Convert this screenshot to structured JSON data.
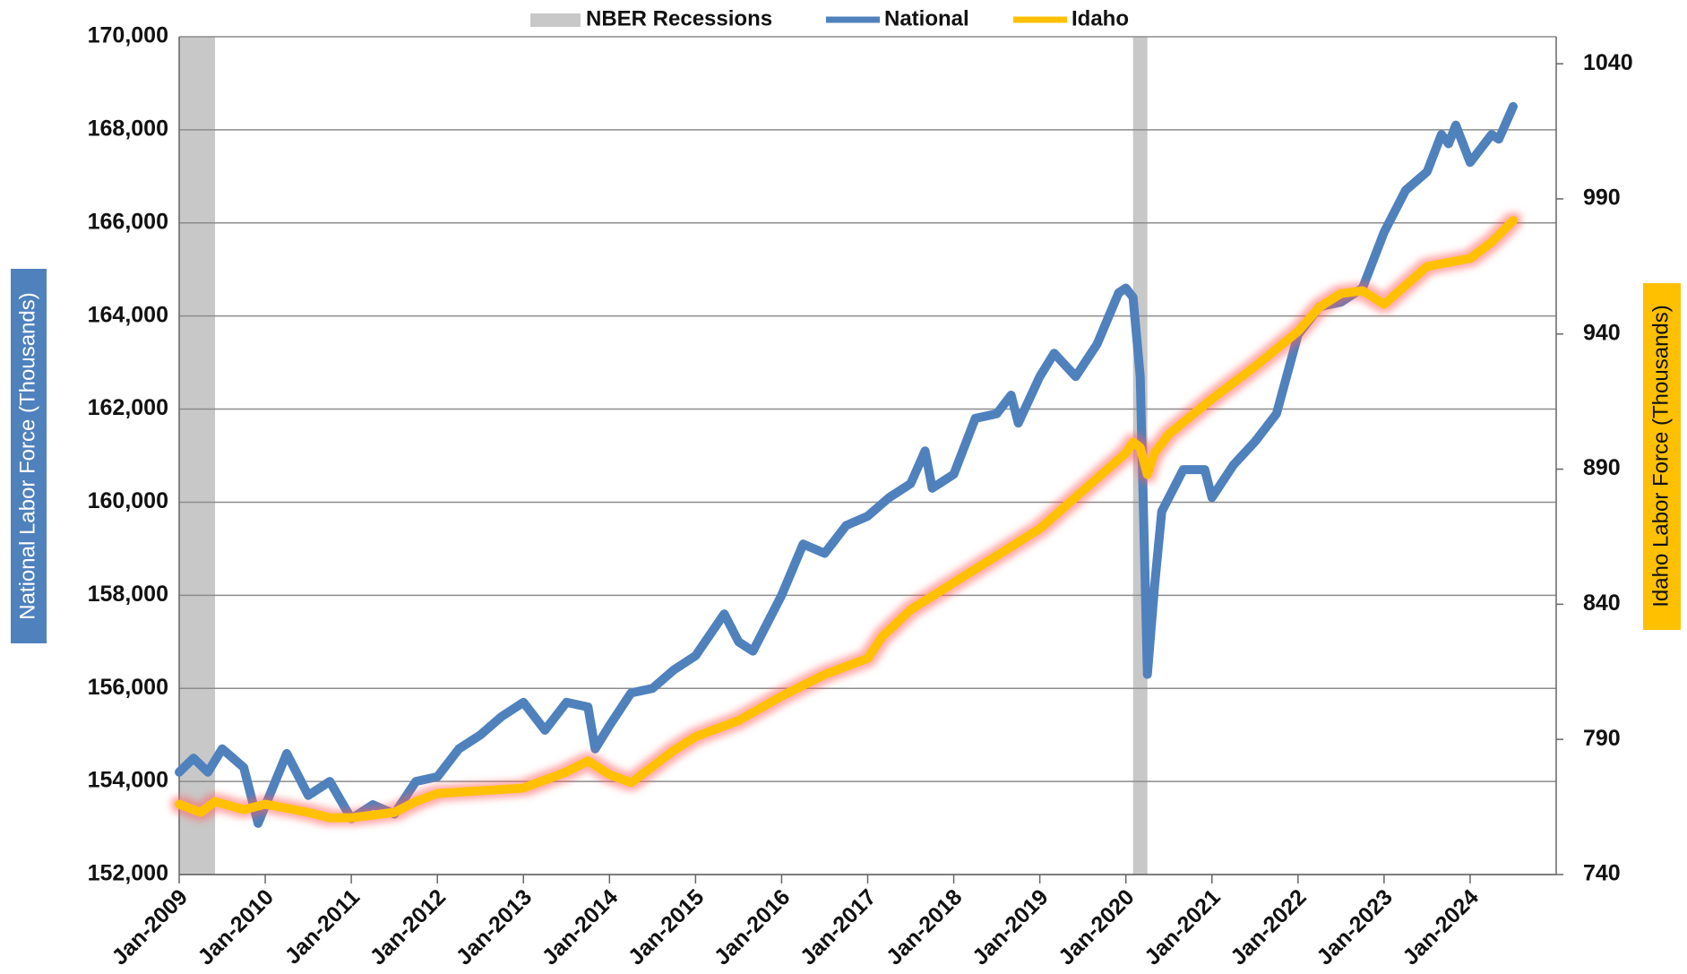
{
  "chart_data": {
    "type": "line",
    "xlim": [
      "2009-01",
      "2025-01"
    ],
    "xticks": [
      {
        "value": "2009-01",
        "label": "Jan-2009"
      },
      {
        "value": "2010-01",
        "label": "Jan-2010"
      },
      {
        "value": "2011-01",
        "label": "Jan-2011"
      },
      {
        "value": "2012-01",
        "label": "Jan-2012"
      },
      {
        "value": "2013-01",
        "label": "Jan-2013"
      },
      {
        "value": "2014-01",
        "label": "Jan-2014"
      },
      {
        "value": "2015-01",
        "label": "Jan-2015"
      },
      {
        "value": "2016-01",
        "label": "Jan-2016"
      },
      {
        "value": "2017-01",
        "label": "Jan-2017"
      },
      {
        "value": "2018-01",
        "label": "Jan-2018"
      },
      {
        "value": "2019-01",
        "label": "Jan-2019"
      },
      {
        "value": "2020-01",
        "label": "Jan-2020"
      },
      {
        "value": "2021-01",
        "label": "Jan-2021"
      },
      {
        "value": "2022-01",
        "label": "Jan-2022"
      },
      {
        "value": "2023-01",
        "label": "Jan-2023"
      },
      {
        "value": "2024-01",
        "label": "Jan-2024"
      }
    ],
    "ylabel": "National Labor Force (Thousands)",
    "ylim": [
      152000,
      170000
    ],
    "yticks": [
      {
        "value": 152000,
        "label": "152,000"
      },
      {
        "value": 154000,
        "label": "154,000"
      },
      {
        "value": 156000,
        "label": "156,000"
      },
      {
        "value": 158000,
        "label": "158,000"
      },
      {
        "value": 160000,
        "label": "160,000"
      },
      {
        "value": 162000,
        "label": "162,000"
      },
      {
        "value": 164000,
        "label": "164,000"
      },
      {
        "value": 166000,
        "label": "166,000"
      },
      {
        "value": 168000,
        "label": "168,000"
      },
      {
        "value": 170000,
        "label": "170,000"
      }
    ],
    "y2label": "Idaho Labor Force (Thousands)",
    "y2lim": [
      740,
      1050
    ],
    "y2ticks": [
      740,
      790,
      840,
      890,
      940,
      990,
      1040
    ],
    "grid": true,
    "legend": "top",
    "recessions": {
      "name": "NBER Recessions",
      "color": "#c8c8c8",
      "periods": [
        {
          "start": "2009-01",
          "end": "2009-06"
        },
        {
          "start": "2020-02",
          "end": "2020-04"
        }
      ]
    },
    "series": [
      {
        "name": "National",
        "color": "#4f81bd",
        "x": [
          "2009-01",
          "2009-03",
          "2009-05",
          "2009-07",
          "2009-10",
          "2009-12",
          "2010-04",
          "2010-07",
          "2010-10",
          "2011-01",
          "2011-04",
          "2011-07",
          "2011-10",
          "2012-01",
          "2012-04",
          "2012-07",
          "2012-10",
          "2013-01",
          "2013-04",
          "2013-07",
          "2013-10",
          "2013-11",
          "2014-01",
          "2014-04",
          "2014-07",
          "2014-10",
          "2015-01",
          "2015-05",
          "2015-07",
          "2015-09",
          "2016-01",
          "2016-04",
          "2016-07",
          "2016-10",
          "2017-01",
          "2017-04",
          "2017-07",
          "2017-09",
          "2017-10",
          "2018-01",
          "2018-04",
          "2018-07",
          "2018-09",
          "2018-10",
          "2019-01",
          "2019-03",
          "2019-06",
          "2019-09",
          "2019-12",
          "2020-01",
          "2020-02",
          "2020-03",
          "2020-04",
          "2020-05",
          "2020-06",
          "2020-09",
          "2020-12",
          "2021-01",
          "2021-04",
          "2021-07",
          "2021-10",
          "2022-01",
          "2022-04",
          "2022-07",
          "2022-10",
          "2023-01",
          "2023-04",
          "2023-07",
          "2023-09",
          "2023-10",
          "2023-11",
          "2024-01",
          "2024-04",
          "2024-05",
          "2024-07"
        ],
        "values": [
          154200,
          154500,
          154200,
          154700,
          154300,
          153100,
          154600,
          153700,
          154000,
          153200,
          153500,
          153300,
          154000,
          154100,
          154700,
          155000,
          155400,
          155700,
          155100,
          155700,
          155600,
          154700,
          155200,
          155900,
          156000,
          156400,
          156700,
          157600,
          157000,
          156800,
          158000,
          159100,
          158900,
          159500,
          159700,
          160100,
          160400,
          161100,
          160300,
          160600,
          161800,
          161900,
          162300,
          161700,
          162700,
          163200,
          162700,
          163400,
          164500,
          164600,
          164400,
          162700,
          156300,
          158200,
          159800,
          160700,
          160700,
          160100,
          160800,
          161300,
          161900,
          163600,
          164200,
          164300,
          164600,
          165800,
          166700,
          167100,
          167900,
          167700,
          168100,
          167300,
          167900,
          167800,
          168500
        ]
      },
      {
        "name": "Idaho",
        "color": "#ffc000",
        "axis": "y2",
        "x": [
          "2009-01",
          "2009-04",
          "2009-06",
          "2009-10",
          "2010-01",
          "2010-07",
          "2010-10",
          "2011-01",
          "2011-07",
          "2011-10",
          "2012-01",
          "2012-07",
          "2013-01",
          "2013-07",
          "2013-10",
          "2014-01",
          "2014-04",
          "2014-07",
          "2014-10",
          "2015-01",
          "2015-07",
          "2016-01",
          "2016-07",
          "2017-01",
          "2017-03",
          "2017-07",
          "2018-01",
          "2018-07",
          "2019-01",
          "2019-07",
          "2020-01",
          "2020-02",
          "2020-03",
          "2020-04",
          "2020-05",
          "2020-07",
          "2021-01",
          "2021-07",
          "2022-01",
          "2022-04",
          "2022-07",
          "2022-10",
          "2023-01",
          "2023-04",
          "2023-07",
          "2024-01",
          "2024-04",
          "2024-07"
        ],
        "values": [
          766,
          763,
          767,
          764,
          766,
          763,
          761,
          761,
          763,
          767,
          770,
          771,
          772,
          778,
          782,
          777,
          774,
          780,
          786,
          791,
          797,
          806,
          814,
          820,
          828,
          838,
          848,
          858,
          868,
          882,
          896,
          900,
          898,
          888,
          896,
          903,
          916,
          928,
          941,
          950,
          955,
          956,
          951,
          958,
          965,
          968,
          974,
          982
        ]
      }
    ]
  }
}
